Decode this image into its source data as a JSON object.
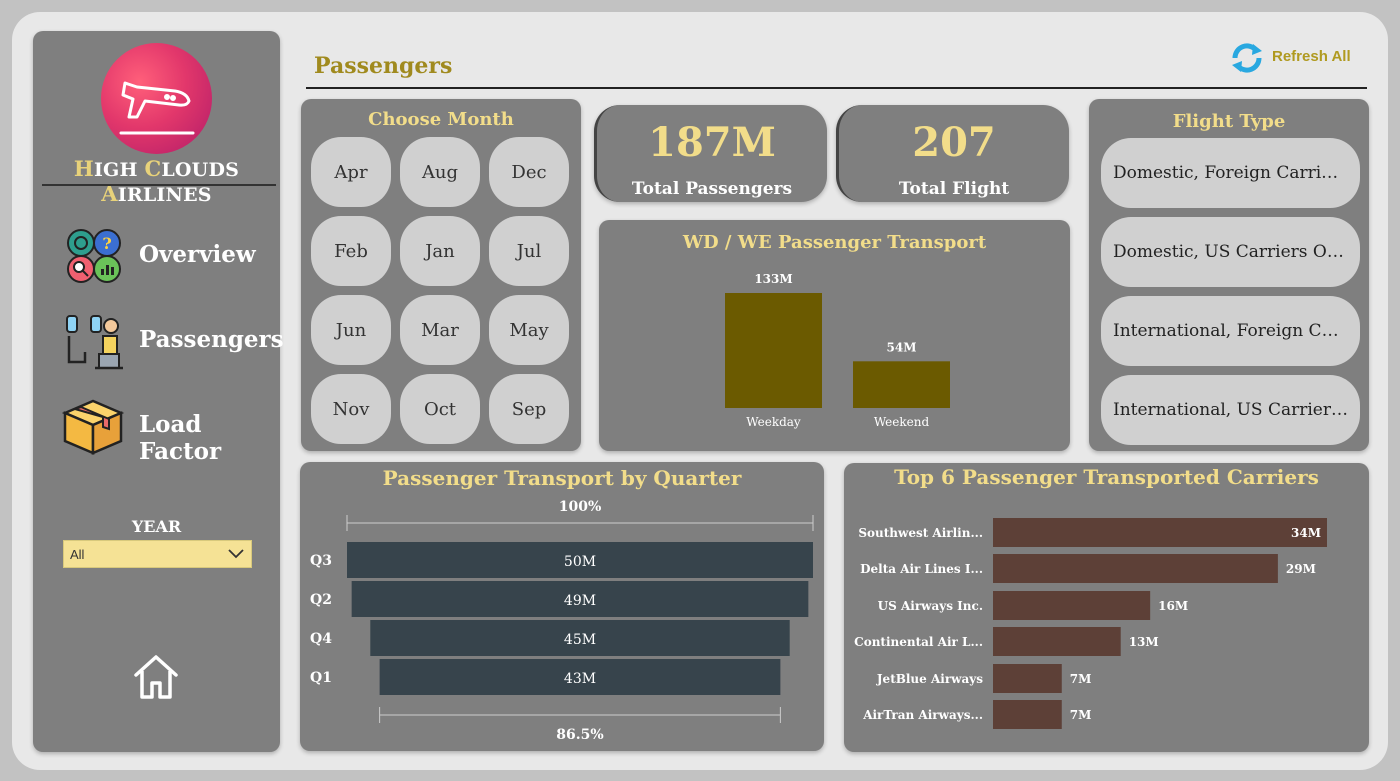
{
  "sidebar": {
    "brand": {
      "h": "H",
      "igh": "IGH ",
      "c": "C",
      "louds": "LOUDS ",
      "a": "A",
      "irlines": "IRLINES"
    },
    "nav": [
      {
        "label": "Overview",
        "icon": "overview-icon"
      },
      {
        "label": "Passengers",
        "icon": "passenger-icon"
      },
      {
        "label": "Load Factor",
        "icon": "box-icon"
      }
    ],
    "year_label": "YEAR",
    "year_value": "All"
  },
  "header": {
    "title": "Passengers",
    "refresh_label": "Refresh All"
  },
  "months": {
    "title": "Choose Month",
    "items": [
      "Apr",
      "Aug",
      "Dec",
      "Feb",
      "Jan",
      "Jul",
      "Jun",
      "Mar",
      "May",
      "Nov",
      "Oct",
      "Sep"
    ]
  },
  "kpis": {
    "passengers": {
      "value": "187M",
      "label": "Total Passengers"
    },
    "flights": {
      "value": "207",
      "label": "Total Flight"
    }
  },
  "flight_type": {
    "title": "Flight Type",
    "items": [
      "Domestic, Foreign Carriers",
      "Domestic, US Carriers Only",
      "International, Foreign Carriers",
      "International, US Carriers Only"
    ]
  },
  "colors": {
    "accent": "#f2dd8a",
    "title_gold": "#a08a1e",
    "wdwe_bar": "#6b5a00",
    "quarter_bar": "#37444c",
    "carrier_bar": "#5d4037",
    "card_bg": "#7f7f7f"
  },
  "chart_data": [
    {
      "type": "bar",
      "title": "WD / WE Passenger Transport",
      "categories": [
        "Weekday",
        "Weekend"
      ],
      "values": [
        133,
        54
      ],
      "labels": [
        "133M",
        "54M"
      ],
      "unit": "M"
    },
    {
      "type": "funnel",
      "title": "Passenger Transport by Quarter",
      "categories": [
        "Q3",
        "Q2",
        "Q4",
        "Q1"
      ],
      "values": [
        50,
        49,
        45,
        43
      ],
      "labels": [
        "50M",
        "49M",
        "45M",
        "43M"
      ],
      "top_label": "100%",
      "bottom_label": "86.5%"
    },
    {
      "type": "bar",
      "orientation": "horizontal",
      "title": "Top 6 Passenger Transported Carriers",
      "categories": [
        "Southwest Airlin...",
        "Delta Air Lines I...",
        "US Airways Inc.",
        "Continental Air L...",
        "JetBlue Airways",
        "AirTran Airways..."
      ],
      "values": [
        34,
        29,
        16,
        13,
        7,
        7
      ],
      "labels": [
        "34M",
        "29M",
        "16M",
        "13M",
        "7M",
        "7M"
      ]
    }
  ]
}
